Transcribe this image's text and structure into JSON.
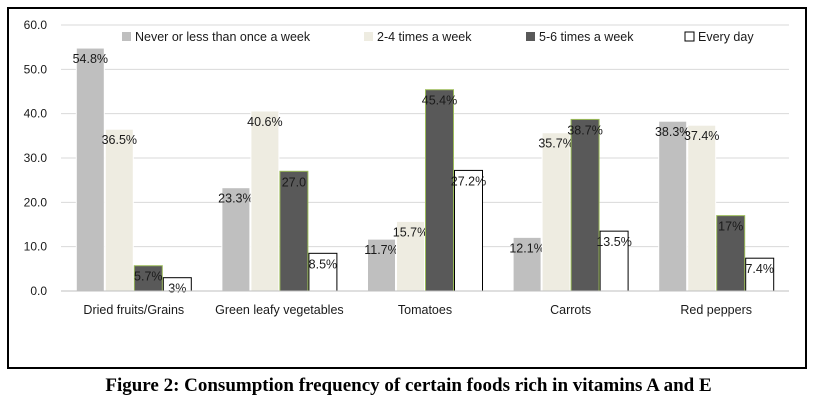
{
  "chart_data": {
    "type": "bar",
    "title": "",
    "xlabel": "",
    "ylabel": "",
    "ylim": [
      0,
      60
    ],
    "yticks": [
      "0.0",
      "10.0",
      "20.0",
      "30.0",
      "40.0",
      "50.0",
      "60.0"
    ],
    "grid": true,
    "legend_position": "top",
    "categories": [
      "Dried fruits/Grains",
      "Green leafy vegetables",
      "Tomatoes",
      "Carrots",
      "Red peppers"
    ],
    "series": [
      {
        "name": "Never or less than once a week",
        "values": [
          54.8,
          23.3,
          11.7,
          12.1,
          38.3
        ],
        "labels": [
          "54.8%",
          "23.3%",
          "11.7%",
          "12.1%",
          "38.3%"
        ],
        "color": "#bfbfbf"
      },
      {
        "name": "2-4 times a week",
        "values": [
          36.5,
          40.6,
          15.7,
          35.7,
          37.4
        ],
        "labels": [
          "36.5%",
          "40.6%",
          "15.7%",
          "35.7%",
          "37.4%"
        ],
        "color": "#eeece1"
      },
      {
        "name": "5-6 times a week",
        "values": [
          5.7,
          27.0,
          45.4,
          38.7,
          17
        ],
        "labels": [
          "5.7%",
          "27.0",
          "45.4%",
          "38.7%",
          "17%"
        ],
        "color": "#595959"
      },
      {
        "name": "Every day",
        "values": [
          3,
          8.5,
          27.2,
          13.5,
          7.4
        ],
        "labels": [
          "3%",
          "8.5%",
          "27.2%",
          "13.5%",
          "7.4%"
        ],
        "color": "#ffffff"
      }
    ]
  },
  "caption": "Figure 2: Consumption frequency of certain foods rich in vitamins A and E"
}
